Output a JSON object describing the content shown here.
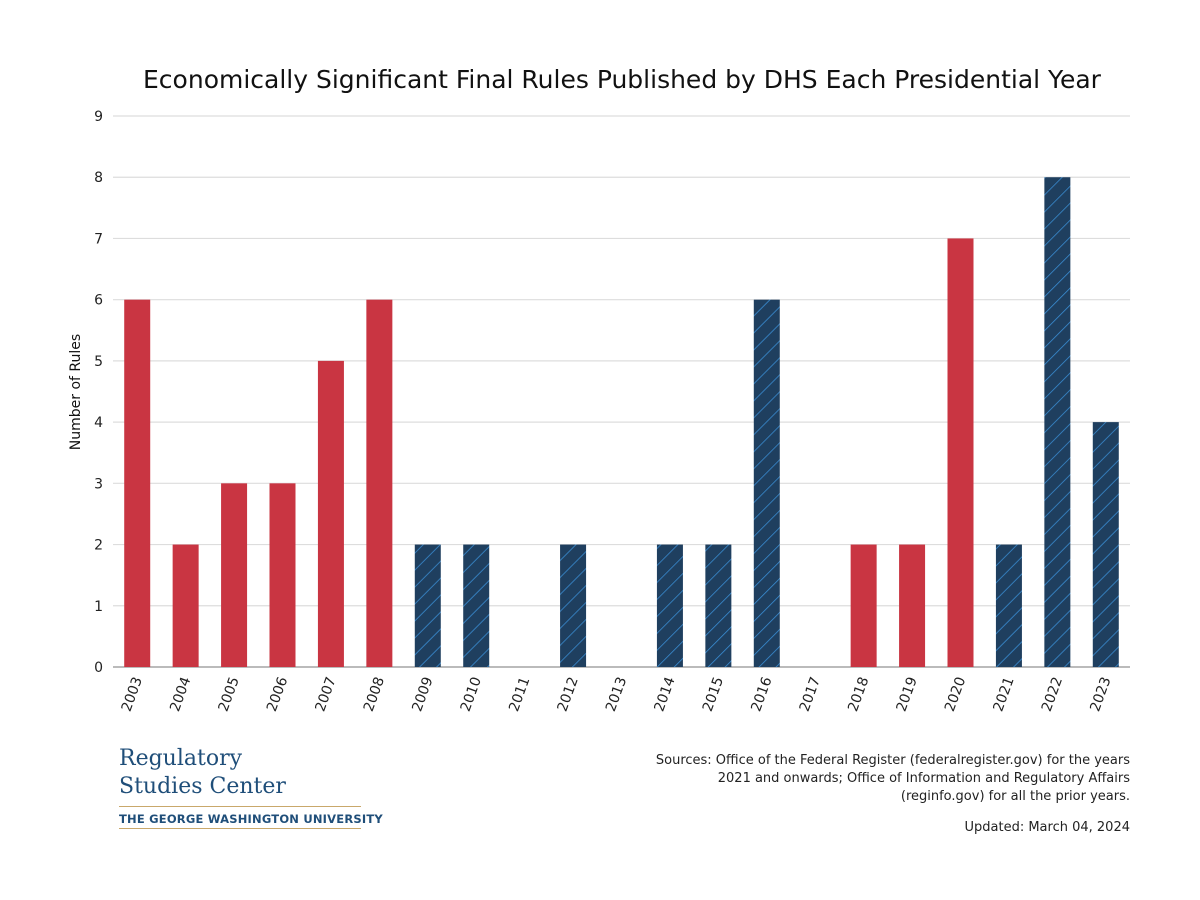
{
  "chart_data": {
    "type": "bar",
    "title": "Economically Significant Final Rules Published by DHS Each Presidential Year",
    "ylabel": "Number of Rules",
    "xlabel": "",
    "ylim": [
      0,
      9
    ],
    "yticks": [
      0,
      1,
      2,
      3,
      4,
      5,
      6,
      7,
      8,
      9
    ],
    "grid": true,
    "categories": [
      "2003",
      "2004",
      "2005",
      "2006",
      "2007",
      "2008",
      "2009",
      "2010",
      "2011",
      "2012",
      "2013",
      "2014",
      "2015",
      "2016",
      "2017",
      "2018",
      "2019",
      "2020",
      "2021",
      "2022",
      "2023"
    ],
    "values": [
      6,
      2,
      3,
      3,
      5,
      6,
      2,
      2,
      0,
      2,
      0,
      2,
      2,
      6,
      0,
      2,
      2,
      7,
      2,
      8,
      4
    ],
    "bar_styles": [
      "red",
      "red",
      "red",
      "red",
      "red",
      "red",
      "navy",
      "navy",
      "navy",
      "navy",
      "navy",
      "navy",
      "navy",
      "navy",
      "red",
      "red",
      "red",
      "red",
      "navy",
      "navy",
      "navy"
    ],
    "colors": {
      "red": "#c93542",
      "navy": "#1f3f5f",
      "hatch": "#3a8fd6"
    }
  },
  "logo": {
    "line1": "Regulatory",
    "line2": "Studies Center",
    "university": "THE GEORGE WASHINGTON UNIVERSITY"
  },
  "sources": "Sources: Office of the Federal Register (federalregister.gov) for the years 2021 and onwards; Office of Information and Regulatory Affairs (reginfo.gov) for all the prior years.",
  "updated": "Updated: March 04, 2024"
}
